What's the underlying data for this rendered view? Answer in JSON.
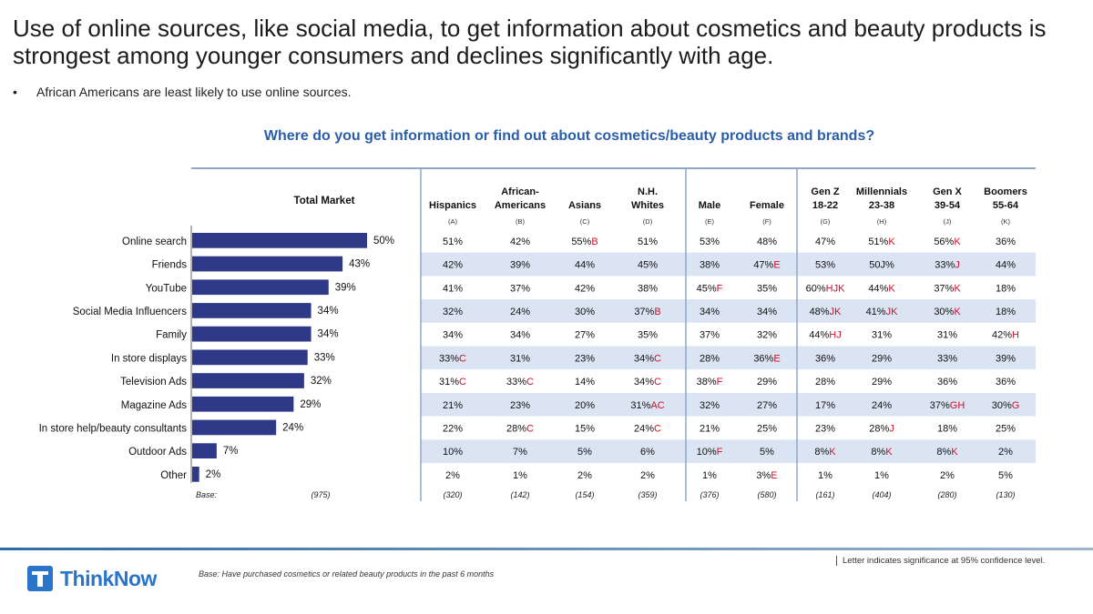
{
  "headline": "Use of online sources, like social media, to get information about cosmetics and beauty products is strongest among younger consumers and declines significantly with age.",
  "bullet": "African Americans are least likely to use online sources.",
  "question": "Where do you get information or find out about cosmetics/beauty products and brands?",
  "colors": {
    "bar": "#2e3a87",
    "question": "#2a5ea8",
    "significance": "#d0102a",
    "band": "#dbe4f2",
    "rule": "#8fa6c6"
  },
  "chart_data": {
    "type": "bar",
    "title": "Where do you get information or find out about cosmetics/beauty products and brands?",
    "series_name": "Total Market",
    "categories": [
      "Online search",
      "Friends",
      "YouTube",
      "Social Media Influencers",
      "Family",
      "In store displays",
      "Television Ads",
      "Magazine Ads",
      "In store help/beauty consultants",
      "Outdoor Ads",
      "Other"
    ],
    "values": [
      50,
      43,
      39,
      34,
      34,
      33,
      32,
      29,
      24,
      7,
      2
    ],
    "value_labels": [
      "50%",
      "43%",
      "39%",
      "34%",
      "34%",
      "33%",
      "32%",
      "29%",
      "24%",
      "7%",
      "2%"
    ],
    "xlim": [
      0,
      50
    ],
    "base_label": "Base:",
    "total_base": "(975)",
    "columns": [
      {
        "h1": "",
        "h2": "Hispanics",
        "code": "(A)",
        "base": "(320)",
        "values": [
          [
            "51%",
            ""
          ],
          [
            "42%",
            ""
          ],
          [
            "41%",
            ""
          ],
          [
            "32%",
            ""
          ],
          [
            "34%",
            ""
          ],
          [
            "33%",
            "C"
          ],
          [
            "31%",
            "C"
          ],
          [
            "21%",
            ""
          ],
          [
            "22%",
            ""
          ],
          [
            "10%",
            ""
          ],
          [
            "2%",
            ""
          ]
        ]
      },
      {
        "h1": "African-",
        "h2": "Americans",
        "code": "(B)",
        "base": "(142)",
        "values": [
          [
            "42%",
            ""
          ],
          [
            "39%",
            ""
          ],
          [
            "37%",
            ""
          ],
          [
            "24%",
            ""
          ],
          [
            "34%",
            ""
          ],
          [
            "31%",
            ""
          ],
          [
            "33%",
            "C"
          ],
          [
            "23%",
            ""
          ],
          [
            "28%",
            "C"
          ],
          [
            "7%",
            ""
          ],
          [
            "1%",
            ""
          ]
        ]
      },
      {
        "h1": "",
        "h2": "Asians",
        "code": "(C)",
        "base": "(154)",
        "values": [
          [
            "55%",
            "B"
          ],
          [
            "44%",
            ""
          ],
          [
            "42%",
            ""
          ],
          [
            "30%",
            ""
          ],
          [
            "27%",
            ""
          ],
          [
            "23%",
            ""
          ],
          [
            "14%",
            ""
          ],
          [
            "20%",
            ""
          ],
          [
            "15%",
            ""
          ],
          [
            "5%",
            ""
          ],
          [
            "2%",
            ""
          ]
        ]
      },
      {
        "h1": "N.H.",
        "h2": "Whites",
        "code": "(D)",
        "base": "(359)",
        "values": [
          [
            "51%",
            ""
          ],
          [
            "45%",
            ""
          ],
          [
            "38%",
            ""
          ],
          [
            "37%",
            "B"
          ],
          [
            "35%",
            ""
          ],
          [
            "34%",
            "C"
          ],
          [
            "34%",
            "C"
          ],
          [
            "31%",
            "AC"
          ],
          [
            "24%",
            "C"
          ],
          [
            "6%",
            ""
          ],
          [
            "2%",
            ""
          ]
        ]
      },
      {
        "h1": "",
        "h2": "Male",
        "code": "(E)",
        "base": "(376)",
        "values": [
          [
            "53%",
            ""
          ],
          [
            "38%",
            ""
          ],
          [
            "45%",
            "F"
          ],
          [
            "34%",
            ""
          ],
          [
            "37%",
            ""
          ],
          [
            "28%",
            ""
          ],
          [
            "38%",
            "F"
          ],
          [
            "32%",
            ""
          ],
          [
            "21%",
            ""
          ],
          [
            "10%",
            "F"
          ],
          [
            "1%",
            ""
          ]
        ]
      },
      {
        "h1": "",
        "h2": "Female",
        "code": "(F)",
        "base": "(580)",
        "values": [
          [
            "48%",
            ""
          ],
          [
            "47%",
            "E"
          ],
          [
            "35%",
            ""
          ],
          [
            "34%",
            ""
          ],
          [
            "32%",
            ""
          ],
          [
            "36%",
            "E"
          ],
          [
            "29%",
            ""
          ],
          [
            "27%",
            ""
          ],
          [
            "25%",
            ""
          ],
          [
            "5%",
            ""
          ],
          [
            "3%",
            "E"
          ]
        ]
      },
      {
        "h1": "Gen Z",
        "h2": "18-22",
        "code": "(G)",
        "base": "(161)",
        "values": [
          [
            "47%",
            ""
          ],
          [
            "53%",
            ""
          ],
          [
            "60%",
            "HJK"
          ],
          [
            "48%",
            "JK"
          ],
          [
            "44%",
            "HJ"
          ],
          [
            "36%",
            ""
          ],
          [
            "28%",
            ""
          ],
          [
            "17%",
            ""
          ],
          [
            "23%",
            ""
          ],
          [
            "8%",
            "K"
          ],
          [
            "1%",
            ""
          ]
        ]
      },
      {
        "h1": "Millennials",
        "h2": "23-38",
        "code": "(H)",
        "base": "(404)",
        "values": [
          [
            "51%",
            "K"
          ],
          [
            "50J%",
            ""
          ],
          [
            "44%",
            "K"
          ],
          [
            "41%",
            "JK"
          ],
          [
            "31%",
            ""
          ],
          [
            "29%",
            ""
          ],
          [
            "29%",
            ""
          ],
          [
            "24%",
            ""
          ],
          [
            "28%",
            "J"
          ],
          [
            "8%",
            "K"
          ],
          [
            "1%",
            ""
          ]
        ]
      },
      {
        "h1": "Gen X",
        "h2": "39-54",
        "code": "(J)",
        "base": "(280)",
        "values": [
          [
            "56%",
            "K"
          ],
          [
            "33%",
            "J"
          ],
          [
            "37%",
            "K"
          ],
          [
            "30%",
            "K"
          ],
          [
            "31%",
            ""
          ],
          [
            "33%",
            ""
          ],
          [
            "36%",
            ""
          ],
          [
            "37%",
            "GH"
          ],
          [
            "18%",
            ""
          ],
          [
            "8%",
            "K"
          ],
          [
            "2%",
            ""
          ]
        ]
      },
      {
        "h1": "Boomers",
        "h2": "55-64",
        "code": "(K)",
        "base": "(130)",
        "values": [
          [
            "36%",
            ""
          ],
          [
            "44%",
            ""
          ],
          [
            "18%",
            ""
          ],
          [
            "18%",
            ""
          ],
          [
            "42%",
            "H"
          ],
          [
            "39%",
            ""
          ],
          [
            "36%",
            ""
          ],
          [
            "30%",
            "G"
          ],
          [
            "25%",
            ""
          ],
          [
            "2%",
            ""
          ],
          [
            "5%",
            ""
          ]
        ]
      }
    ]
  },
  "footer": {
    "logo": "ThinkNow",
    "base_note": "Base: Have purchased cosmetics or related beauty products in the past 6 months",
    "significance_note": "Letter indicates significance at 95% confidence level."
  }
}
